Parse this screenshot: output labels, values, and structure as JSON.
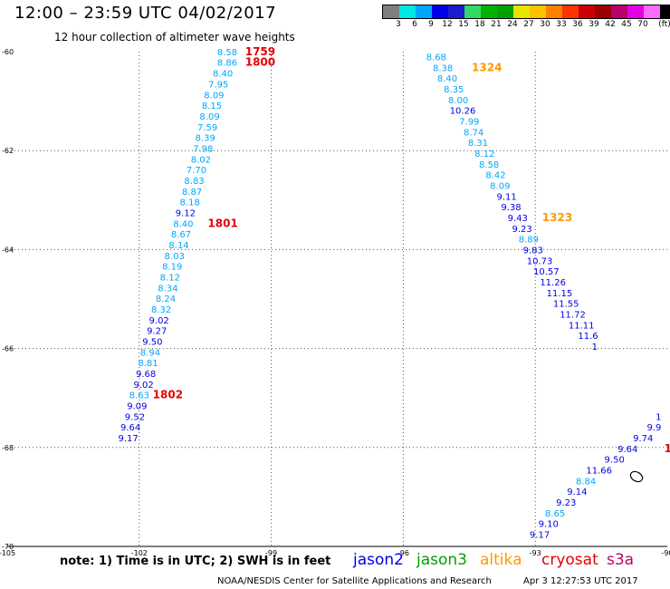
{
  "header": {
    "title": "12:00 – 23:59 UTC 04/02/2017",
    "subtitle": "12 hour collection of altimeter wave heights"
  },
  "colorbar": {
    "colors": [
      "#7f7f7f",
      "#00e5e5",
      "#00a6ff",
      "#0000e6",
      "#1c1ccc",
      "#33d966",
      "#00b300",
      "#00a000",
      "#e5e500",
      "#ffc000",
      "#ff8000",
      "#ff3300",
      "#cc0000",
      "#9a0000",
      "#b8006e",
      "#e400e4",
      "#ff6bff",
      "#000000"
    ],
    "labels": [
      "3",
      "6",
      "9",
      "12",
      "15",
      "18",
      "21",
      "24",
      "27",
      "30",
      "33",
      "36",
      "39",
      "42",
      "45",
      "70",
      "(ft)"
    ]
  },
  "chart_data": {
    "type": "scatter",
    "xlim": [
      -105,
      -90
    ],
    "ylim": [
      -70,
      -60
    ],
    "grid": true,
    "x_ticks": [
      "-105",
      "-102",
      "-99",
      "-96",
      "-93",
      "-90"
    ],
    "y_ticks": [
      "-60",
      "-62",
      "-64",
      "-66",
      "-68",
      "-70"
    ],
    "track_a": [
      {
        "lon": -100.0,
        "lat": -60.0,
        "v": "8.58",
        "c": "#00a6ff"
      },
      {
        "lon": -100.0,
        "lat": -60.21,
        "v": "8.86",
        "c": "#00a6ff"
      },
      {
        "lon": -100.1,
        "lat": -60.43,
        "v": "8.40",
        "c": "#00a6ff"
      },
      {
        "lon": -100.2,
        "lat": -60.65,
        "v": "7.95",
        "c": "#00a6ff"
      },
      {
        "lon": -100.3,
        "lat": -60.87,
        "v": "8.09",
        "c": "#00a6ff"
      },
      {
        "lon": -100.35,
        "lat": -61.08,
        "v": "8.15",
        "c": "#00a6ff"
      },
      {
        "lon": -100.4,
        "lat": -61.3,
        "v": "8.09",
        "c": "#00a6ff"
      },
      {
        "lon": -100.45,
        "lat": -61.52,
        "v": "7.59",
        "c": "#00a6ff"
      },
      {
        "lon": -100.5,
        "lat": -61.73,
        "v": "8.39",
        "c": "#00a6ff"
      },
      {
        "lon": -100.55,
        "lat": -61.95,
        "v": "7.98",
        "c": "#00a6ff"
      },
      {
        "lon": -100.6,
        "lat": -62.17,
        "v": "8.02",
        "c": "#00a6ff"
      },
      {
        "lon": -100.7,
        "lat": -62.38,
        "v": "7.70",
        "c": "#00a6ff"
      },
      {
        "lon": -100.75,
        "lat": -62.6,
        "v": "8.83",
        "c": "#00a6ff"
      },
      {
        "lon": -100.8,
        "lat": -62.82,
        "v": "8.87",
        "c": "#00a6ff"
      },
      {
        "lon": -100.85,
        "lat": -63.03,
        "v": "8.18",
        "c": "#00a6ff"
      },
      {
        "lon": -100.95,
        "lat": -63.25,
        "v": "9.12",
        "c": "#0000e6"
      },
      {
        "lon": -101.0,
        "lat": -63.47,
        "v": "8.40",
        "c": "#00a6ff"
      },
      {
        "lon": -101.05,
        "lat": -63.68,
        "v": "8.67",
        "c": "#00a6ff"
      },
      {
        "lon": -101.1,
        "lat": -63.9,
        "v": "8.14",
        "c": "#00a6ff"
      },
      {
        "lon": -101.2,
        "lat": -64.12,
        "v": "8.03",
        "c": "#00a6ff"
      },
      {
        "lon": -101.25,
        "lat": -64.33,
        "v": "8.19",
        "c": "#00a6ff"
      },
      {
        "lon": -101.3,
        "lat": -64.55,
        "v": "8.12",
        "c": "#00a6ff"
      },
      {
        "lon": -101.35,
        "lat": -64.77,
        "v": "8.34",
        "c": "#00a6ff"
      },
      {
        "lon": -101.4,
        "lat": -64.98,
        "v": "8.24",
        "c": "#00a6ff"
      },
      {
        "lon": -101.5,
        "lat": -65.2,
        "v": "8.32",
        "c": "#00a6ff"
      },
      {
        "lon": -101.55,
        "lat": -65.42,
        "v": "9.02",
        "c": "#0000e6"
      },
      {
        "lon": -101.6,
        "lat": -65.63,
        "v": "9.27",
        "c": "#0000e6"
      },
      {
        "lon": -101.7,
        "lat": -65.85,
        "v": "9.50",
        "c": "#0000e6"
      },
      {
        "lon": -101.75,
        "lat": -66.07,
        "v": "8.94",
        "c": "#00a6ff"
      },
      {
        "lon": -101.8,
        "lat": -66.28,
        "v": "8.81",
        "c": "#00a6ff"
      },
      {
        "lon": -101.85,
        "lat": -66.5,
        "v": "9.68",
        "c": "#0000e6"
      },
      {
        "lon": -101.9,
        "lat": -66.72,
        "v": "9.02",
        "c": "#0000e6"
      },
      {
        "lon": -102.0,
        "lat": -66.93,
        "v": "8.63",
        "c": "#00a6ff"
      },
      {
        "lon": -102.05,
        "lat": -67.15,
        "v": "9.09",
        "c": "#0000e6"
      },
      {
        "lon": -102.1,
        "lat": -67.37,
        "v": "9.52",
        "c": "#0000e6"
      },
      {
        "lon": -102.2,
        "lat": -67.58,
        "v": "9.64",
        "c": "#0000e6"
      },
      {
        "lon": -102.25,
        "lat": -67.8,
        "v": "9.17",
        "c": "#0000e6"
      }
    ],
    "track_b": [
      {
        "lon": -95.25,
        "lat": -60.1,
        "v": "8.68",
        "c": "#00a6ff"
      },
      {
        "lon": -95.1,
        "lat": -60.32,
        "v": "8.38",
        "c": "#00a6ff"
      },
      {
        "lon": -95.0,
        "lat": -60.53,
        "v": "8.40",
        "c": "#00a6ff"
      },
      {
        "lon": -94.85,
        "lat": -60.75,
        "v": "8.35",
        "c": "#00a6ff"
      },
      {
        "lon": -94.75,
        "lat": -60.97,
        "v": "8.00",
        "c": "#00a6ff"
      },
      {
        "lon": -94.65,
        "lat": -61.18,
        "v": "10.26",
        "c": "#0000e6"
      },
      {
        "lon": -94.5,
        "lat": -61.4,
        "v": "7.99",
        "c": "#00a6ff"
      },
      {
        "lon": -94.4,
        "lat": -61.62,
        "v": "8.74",
        "c": "#00a6ff"
      },
      {
        "lon": -94.3,
        "lat": -61.83,
        "v": "8.31",
        "c": "#00a6ff"
      },
      {
        "lon": -94.15,
        "lat": -62.05,
        "v": "8.12",
        "c": "#00a6ff"
      },
      {
        "lon": -94.05,
        "lat": -62.27,
        "v": "8.58",
        "c": "#00a6ff"
      },
      {
        "lon": -93.9,
        "lat": -62.48,
        "v": "8.42",
        "c": "#00a6ff"
      },
      {
        "lon": -93.8,
        "lat": -62.7,
        "v": "8.09",
        "c": "#00a6ff"
      },
      {
        "lon": -93.65,
        "lat": -62.92,
        "v": "9.11",
        "c": "#0000e6"
      },
      {
        "lon": -93.55,
        "lat": -63.13,
        "v": "9.38",
        "c": "#0000e6"
      },
      {
        "lon": -93.4,
        "lat": -63.35,
        "v": "9.43",
        "c": "#0000e6"
      },
      {
        "lon": -93.3,
        "lat": -63.57,
        "v": "9.23",
        "c": "#0000e6"
      },
      {
        "lon": -93.15,
        "lat": -63.78,
        "v": "8.89",
        "c": "#00a6ff"
      },
      {
        "lon": -93.05,
        "lat": -64.0,
        "v": "9.83",
        "c": "#0000e6"
      },
      {
        "lon": -92.9,
        "lat": -64.22,
        "v": "10.73",
        "c": "#0000e6"
      },
      {
        "lon": -92.75,
        "lat": -64.43,
        "v": "10.57",
        "c": "#0000e6"
      },
      {
        "lon": -92.6,
        "lat": -64.65,
        "v": "11.26",
        "c": "#0000e6"
      },
      {
        "lon": -92.45,
        "lat": -64.87,
        "v": "11.15",
        "c": "#0000e6"
      },
      {
        "lon": -92.3,
        "lat": -65.08,
        "v": "11.55",
        "c": "#0000e6"
      },
      {
        "lon": -92.15,
        "lat": -65.3,
        "v": "11.72",
        "c": "#0000e6"
      },
      {
        "lon": -91.95,
        "lat": -65.52,
        "v": "11.11",
        "c": "#0000e6"
      },
      {
        "lon": -91.8,
        "lat": -65.73,
        "v": "11.6",
        "c": "#0000e6"
      },
      {
        "lon": -91.65,
        "lat": -65.95,
        "v": "1",
        "c": "#0000e6"
      }
    ],
    "track_c": [
      {
        "lon": -90.2,
        "lat": -67.37,
        "v": "1",
        "c": "#0000e6"
      },
      {
        "lon": -90.3,
        "lat": -67.58,
        "v": "9.9",
        "c": "#0000e6"
      },
      {
        "lon": -90.55,
        "lat": -67.8,
        "v": "9.74",
        "c": "#0000e6"
      },
      {
        "lon": -90.9,
        "lat": -68.02,
        "v": "9.64",
        "c": "#0000e6"
      },
      {
        "lon": -91.2,
        "lat": -68.23,
        "v": "9.50",
        "c": "#0000e6"
      },
      {
        "lon": -91.55,
        "lat": -68.45,
        "v": "11.66",
        "c": "#0000e6"
      },
      {
        "lon": -91.85,
        "lat": -68.67,
        "v": "8.84",
        "c": "#00a6ff"
      },
      {
        "lon": -92.05,
        "lat": -68.88,
        "v": "9.14",
        "c": "#0000e6"
      },
      {
        "lon": -92.3,
        "lat": -69.1,
        "v": "9.23",
        "c": "#0000e6"
      },
      {
        "lon": -92.55,
        "lat": -69.32,
        "v": "8.65",
        "c": "#00a6ff"
      },
      {
        "lon": -92.7,
        "lat": -69.53,
        "v": "9.10",
        "c": "#0000e6"
      },
      {
        "lon": -92.9,
        "lat": -69.75,
        "v": "9.17",
        "c": "#0000e6"
      }
    ],
    "time_labels": [
      {
        "lon": -99.25,
        "lat": -60.0,
        "v": "1759",
        "c": "#e60000"
      },
      {
        "lon": -99.25,
        "lat": -60.21,
        "v": "1800",
        "c": "#e60000"
      },
      {
        "lon": -100.1,
        "lat": -63.47,
        "v": "1801",
        "c": "#e60000"
      },
      {
        "lon": -101.35,
        "lat": -66.93,
        "v": "1802",
        "c": "#e60000"
      },
      {
        "lon": -94.1,
        "lat": -60.32,
        "v": "1324",
        "c": "#ff9900"
      },
      {
        "lon": -92.5,
        "lat": -63.35,
        "v": "1323",
        "c": "#ff9900"
      },
      {
        "lon": -89.98,
        "lat": -68.02,
        "v": "1",
        "c": "#e60000"
      }
    ]
  },
  "footer": {
    "note": "note: 1) Time is in UTC; 2) SWH is in feet",
    "legend": [
      {
        "name": "jason2",
        "color": "#0000e6"
      },
      {
        "name": "jason3",
        "color": "#00a000"
      },
      {
        "name": "altika",
        "color": "#ff9900"
      },
      {
        "name": "cryosat",
        "color": "#e60000"
      },
      {
        "name": "s3a",
        "color": "#b8006e"
      }
    ],
    "credit": "NOAA/NESDIS Center for Satellite Applications and Research",
    "timestamp": "Apr  3 12:27:53 UTC 2017"
  }
}
